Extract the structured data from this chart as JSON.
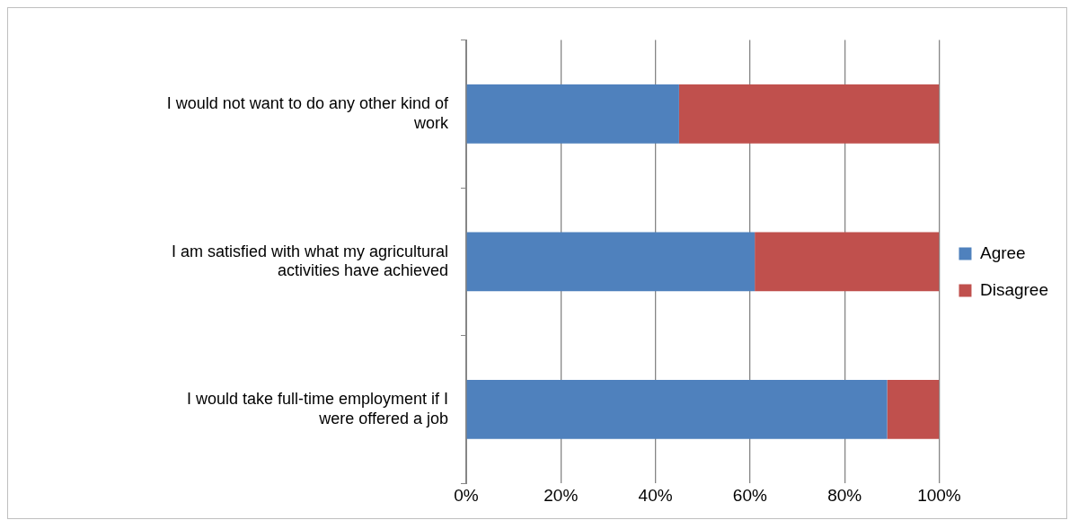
{
  "chart_data": {
    "type": "bar",
    "orientation": "horizontal",
    "stacked": true,
    "categories": [
      "I would not want to do any other kind of work",
      "I am satisfied with what my agricultural activities have achieved",
      "I would take full-time employment if I were offered a job"
    ],
    "series": [
      {
        "name": "Agree",
        "color": "#4f81bd",
        "values": [
          45,
          61,
          89
        ]
      },
      {
        "name": "Disagree",
        "color": "#c0504d",
        "values": [
          55,
          39,
          11
        ]
      }
    ],
    "xlim": [
      0,
      100
    ],
    "xticks": [
      {
        "value": 0,
        "label": "0%"
      },
      {
        "value": 20,
        "label": "20%"
      },
      {
        "value": 40,
        "label": "40%"
      },
      {
        "value": 60,
        "label": "60%"
      },
      {
        "value": 80,
        "label": "80%"
      },
      {
        "value": 100,
        "label": "100%"
      }
    ],
    "grid": "x",
    "legend": "right"
  }
}
